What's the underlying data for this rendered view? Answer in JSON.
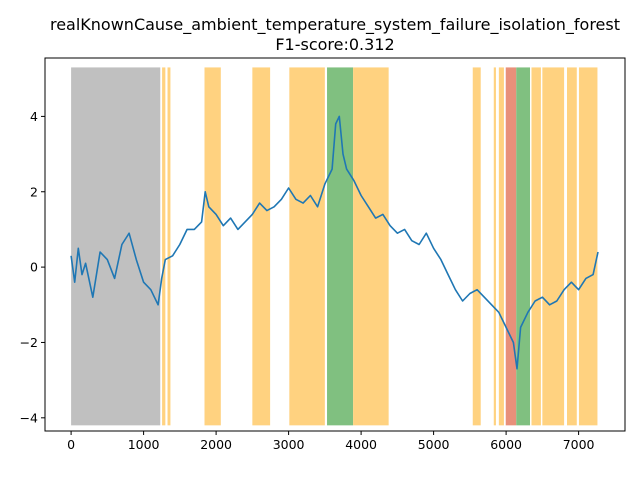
{
  "chart_data": {
    "type": "line",
    "title": "realKnownCause_ambient_temperature_system_failure_isolation_forest",
    "subtitle": "F1-score:0.312",
    "xlabel": "",
    "ylabel": "",
    "xlim": [
      -360,
      7640
    ],
    "ylim": [
      -4.35,
      5.55
    ],
    "xticks": [
      0,
      1000,
      2000,
      3000,
      4000,
      5000,
      6000,
      7000
    ],
    "yticks": [
      -4,
      -2,
      0,
      2,
      4
    ],
    "grid": false,
    "legend": "none",
    "colors": {
      "series": "#1f77b4",
      "probationary": "#c0c0c0",
      "detected": "#ffd280",
      "true_positive": "#80c080",
      "anomaly_window": "#e8907a"
    },
    "shaded_regions": [
      {
        "type": "probationary",
        "x0": 0,
        "x1": 1230
      },
      {
        "type": "detected",
        "x0": 1255,
        "x1": 1300
      },
      {
        "type": "detected",
        "x0": 1330,
        "x1": 1370
      },
      {
        "type": "detected",
        "x0": 1840,
        "x1": 2065
      },
      {
        "type": "detected",
        "x0": 2500,
        "x1": 2745
      },
      {
        "type": "detected",
        "x0": 3010,
        "x1": 3500
      },
      {
        "type": "true_positive",
        "x0": 3530,
        "x1": 3890
      },
      {
        "type": "detected",
        "x0": 3890,
        "x1": 4380
      },
      {
        "type": "detected",
        "x0": 5540,
        "x1": 5650
      },
      {
        "type": "detected",
        "x0": 5830,
        "x1": 5860
      },
      {
        "type": "detected",
        "x0": 5900,
        "x1": 5970
      },
      {
        "type": "anomaly_window",
        "x0": 5995,
        "x1": 6140
      },
      {
        "type": "true_positive",
        "x0": 6140,
        "x1": 6330
      },
      {
        "type": "detected",
        "x0": 6350,
        "x1": 6480
      },
      {
        "type": "detected",
        "x0": 6500,
        "x1": 6800
      },
      {
        "type": "detected",
        "x0": 6840,
        "x1": 6975
      },
      {
        "type": "detected",
        "x0": 7005,
        "x1": 7260
      }
    ],
    "series": [
      {
        "x": [
          0,
          50,
          100,
          150,
          200,
          300,
          400,
          500,
          600,
          700,
          800,
          900,
          1000,
          1100,
          1200,
          1250,
          1300,
          1400,
          1500,
          1600,
          1700,
          1800,
          1850,
          1900,
          2000,
          2100,
          2200,
          2300,
          2400,
          2500,
          2600,
          2700,
          2800,
          2900,
          3000,
          3100,
          3200,
          3300,
          3400,
          3500,
          3600,
          3650,
          3700,
          3750,
          3800,
          3900,
          4000,
          4100,
          4200,
          4300,
          4400,
          4500,
          4600,
          4700,
          4800,
          4900,
          5000,
          5100,
          5200,
          5300,
          5400,
          5500,
          5600,
          5700,
          5800,
          5900,
          6000,
          6100,
          6150,
          6200,
          6300,
          6400,
          6500,
          6600,
          6700,
          6800,
          6900,
          7000,
          7100,
          7200,
          7267
        ],
        "y": [
          0.3,
          -0.4,
          0.5,
          -0.2,
          0.1,
          -0.8,
          0.4,
          0.2,
          -0.3,
          0.6,
          0.9,
          0.2,
          -0.4,
          -0.6,
          -1.0,
          -0.3,
          0.2,
          0.3,
          0.6,
          1.0,
          1.0,
          1.2,
          2.0,
          1.6,
          1.4,
          1.1,
          1.3,
          1.0,
          1.2,
          1.4,
          1.7,
          1.5,
          1.6,
          1.8,
          2.1,
          1.8,
          1.7,
          1.9,
          1.6,
          2.2,
          2.6,
          3.8,
          4.0,
          3.0,
          2.6,
          2.3,
          1.9,
          1.6,
          1.3,
          1.4,
          1.1,
          0.9,
          1.0,
          0.7,
          0.6,
          0.9,
          0.5,
          0.2,
          -0.2,
          -0.6,
          -0.9,
          -0.7,
          -0.6,
          -0.8,
          -1.0,
          -1.2,
          -1.6,
          -2.0,
          -2.7,
          -1.6,
          -1.2,
          -0.9,
          -0.8,
          -1.0,
          -0.9,
          -0.6,
          -0.4,
          -0.6,
          -0.3,
          -0.2,
          0.4
        ]
      }
    ]
  }
}
